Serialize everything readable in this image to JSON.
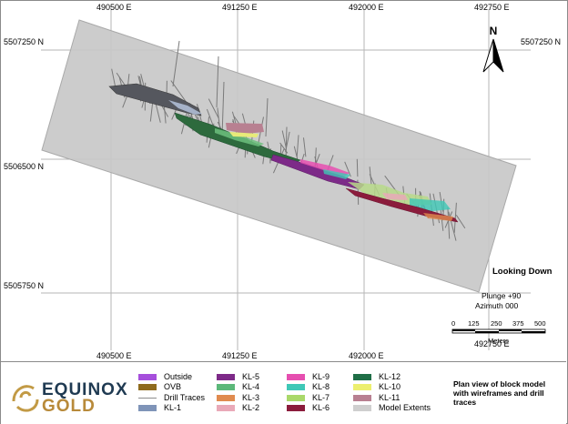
{
  "map": {
    "north_label": "N",
    "view_label": "Looking Down",
    "plunge": "Plunge +90",
    "azimuth": "Azimuth 000",
    "scale": {
      "ticks": [
        "0",
        "125",
        "250",
        "375",
        "500"
      ],
      "unit": "Meters"
    },
    "easting_labels": [
      "490500 E",
      "491250 E",
      "492000 E",
      "492750 E"
    ],
    "northing_labels": [
      "5507250 N",
      "5506500 N",
      "5505750 N"
    ]
  },
  "legend": {
    "items": [
      {
        "label": "Outside",
        "color": "#a64fdc",
        "kind": "fill"
      },
      {
        "label": "OVB",
        "color": "#8f6b1e",
        "kind": "fill"
      },
      {
        "label": "Drill Traces",
        "color": "#8c8c8c",
        "kind": "line"
      },
      {
        "label": "KL-1",
        "color": "#7f94b8",
        "kind": "fill"
      },
      {
        "label": "KL-5",
        "color": "#7d2a88",
        "kind": "fill"
      },
      {
        "label": "KL-4",
        "color": "#5cb87a",
        "kind": "fill"
      },
      {
        "label": "KL-3",
        "color": "#e08b4f",
        "kind": "fill"
      },
      {
        "label": "KL-2",
        "color": "#e9a9b8",
        "kind": "fill"
      },
      {
        "label": "KL-9",
        "color": "#e64fb0",
        "kind": "fill"
      },
      {
        "label": "KL-8",
        "color": "#3fc8b7",
        "kind": "fill"
      },
      {
        "label": "KL-7",
        "color": "#a9d86a",
        "kind": "fill"
      },
      {
        "label": "KL-6",
        "color": "#8b1c3c",
        "kind": "fill"
      },
      {
        "label": "KL-12",
        "color": "#1f6e46",
        "kind": "fill"
      },
      {
        "label": "KL-10",
        "color": "#ecef6e",
        "kind": "fill"
      },
      {
        "label": "KL-11",
        "color": "#b88091",
        "kind": "fill"
      },
      {
        "label": "Model Extents",
        "color": "#cfcfcf",
        "kind": "fill"
      }
    ]
  },
  "logo": {
    "line1": "EQUINOX",
    "line2": "GOLD"
  },
  "caption": "Plan view of block model with wireframes and drill traces",
  "colors": {
    "model_extents": "#c8c8c8",
    "grid_line": "#b0b0b0",
    "frame": "#8a8a8a"
  }
}
